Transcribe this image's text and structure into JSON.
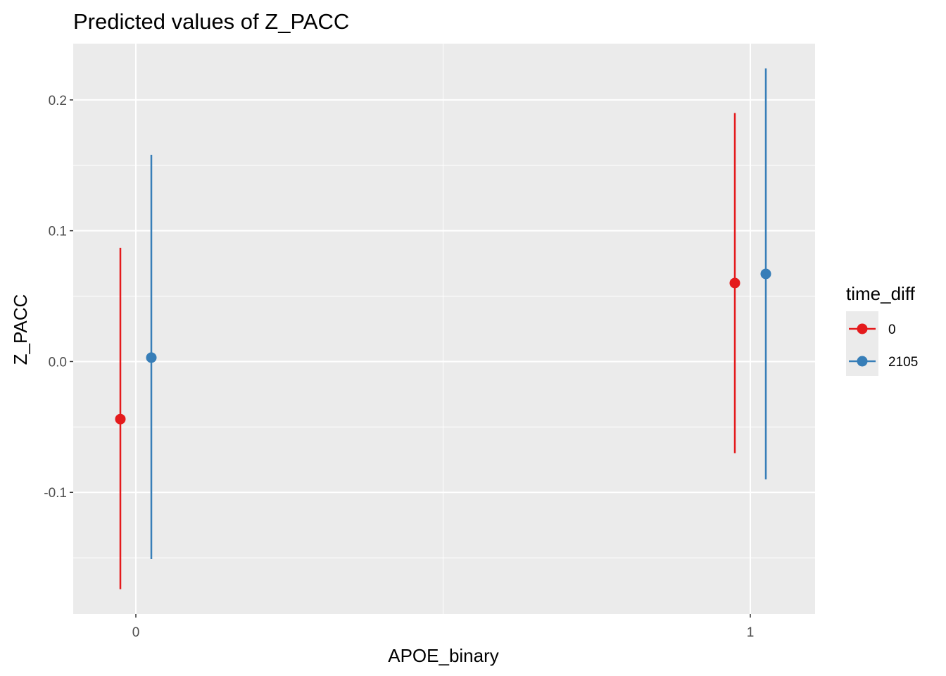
{
  "chart_data": {
    "type": "scatter",
    "title": "Predicted values of Z_PACC",
    "xlabel": "APOE_binary",
    "ylabel": "Z_PACC",
    "x_categories": [
      "0",
      "1"
    ],
    "ylim": [
      -0.193,
      0.243
    ],
    "y_ticks": [
      -0.1,
      0.0,
      0.1,
      0.2
    ],
    "y_tick_labels": [
      "-0.1",
      "0.0",
      "0.1",
      "0.2"
    ],
    "grid": true,
    "legend": {
      "title": "time_diff",
      "position": "right"
    },
    "series": [
      {
        "name": "0",
        "color": "#E41A1C",
        "points": [
          {
            "x": "0",
            "y": -0.044,
            "ymin": -0.174,
            "ymax": 0.087
          },
          {
            "x": "1",
            "y": 0.06,
            "ymin": -0.07,
            "ymax": 0.19
          }
        ]
      },
      {
        "name": "2105",
        "color": "#377EB8",
        "points": [
          {
            "x": "0",
            "y": 0.003,
            "ymin": -0.151,
            "ymax": 0.158
          },
          {
            "x": "1",
            "y": 0.067,
            "ymin": -0.09,
            "ymax": 0.224
          }
        ]
      }
    ]
  }
}
